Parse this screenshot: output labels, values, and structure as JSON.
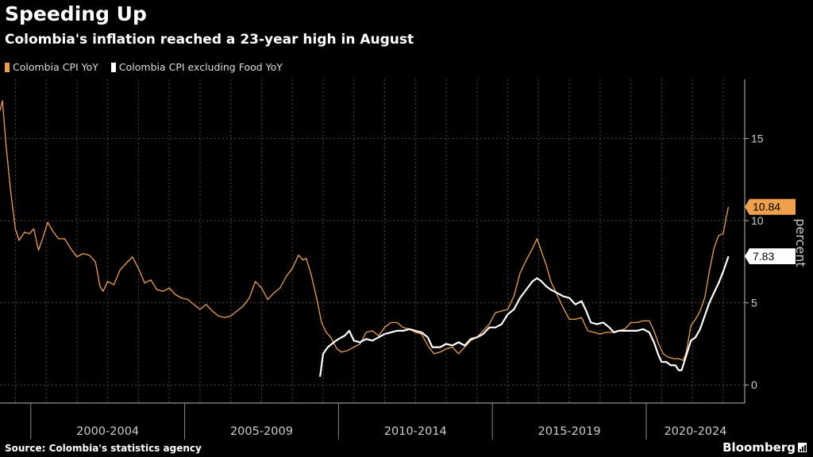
{
  "header": {
    "title": "Speeding Up",
    "subtitle": "Colombia's inflation reached a 23-year high in August"
  },
  "legend": [
    {
      "label": "Colombia CPI YoY",
      "color": "#f0a04b"
    },
    {
      "label": "Colombia CPI excluding Food YoY",
      "color": "#ffffff"
    }
  ],
  "footer": {
    "source": "Source: Colombia's statistics agency",
    "brand": "Bloomberg"
  },
  "chart_data": {
    "type": "line",
    "title": "Speeding Up",
    "subtitle": "Colombia's inflation reached a 23-year high in August",
    "xlabel": "",
    "ylabel": "percent",
    "x_period_labels": [
      "2000-2004",
      "2005-2009",
      "2010-2014",
      "2015-2019",
      "2020-2024"
    ],
    "xlim": [
      1999.0,
      2023.2
    ],
    "ylim": [
      -1.1,
      18.6
    ],
    "yticks": [
      0,
      5,
      10,
      15
    ],
    "grid": true,
    "last_value_labels": [
      "10.84",
      "7.83"
    ],
    "series": [
      {
        "name": "Colombia CPI YoY",
        "color": "#f0a04b",
        "points": [
          [
            1999.0,
            16.7
          ],
          [
            1999.08,
            17.3
          ],
          [
            1999.2,
            14.5
          ],
          [
            1999.35,
            11.7
          ],
          [
            1999.5,
            9.5
          ],
          [
            1999.62,
            8.8
          ],
          [
            1999.8,
            9.3
          ],
          [
            1999.95,
            9.2
          ],
          [
            2000.1,
            9.5
          ],
          [
            2000.25,
            8.2
          ],
          [
            2000.4,
            9.0
          ],
          [
            2000.55,
            9.9
          ],
          [
            2000.7,
            9.4
          ],
          [
            2000.9,
            8.9
          ],
          [
            2001.1,
            8.9
          ],
          [
            2001.3,
            8.3
          ],
          [
            2001.5,
            7.8
          ],
          [
            2001.7,
            8.0
          ],
          [
            2001.9,
            7.9
          ],
          [
            2002.1,
            7.5
          ],
          [
            2002.25,
            6.0
          ],
          [
            2002.35,
            5.7
          ],
          [
            2002.5,
            6.3
          ],
          [
            2002.7,
            6.1
          ],
          [
            2002.9,
            7.0
          ],
          [
            2003.1,
            7.4
          ],
          [
            2003.3,
            7.8
          ],
          [
            2003.5,
            7.1
          ],
          [
            2003.7,
            6.2
          ],
          [
            2003.9,
            6.4
          ],
          [
            2004.1,
            5.8
          ],
          [
            2004.3,
            5.7
          ],
          [
            2004.5,
            5.9
          ],
          [
            2004.7,
            5.5
          ],
          [
            2004.9,
            5.3
          ],
          [
            2005.1,
            5.2
          ],
          [
            2005.3,
            4.9
          ],
          [
            2005.5,
            4.6
          ],
          [
            2005.7,
            4.9
          ],
          [
            2005.9,
            4.5
          ],
          [
            2006.1,
            4.2
          ],
          [
            2006.3,
            4.1
          ],
          [
            2006.5,
            4.2
          ],
          [
            2006.7,
            4.5
          ],
          [
            2006.9,
            4.8
          ],
          [
            2007.1,
            5.3
          ],
          [
            2007.3,
            6.3
          ],
          [
            2007.5,
            5.9
          ],
          [
            2007.7,
            5.2
          ],
          [
            2007.9,
            5.6
          ],
          [
            2008.1,
            5.9
          ],
          [
            2008.3,
            6.6
          ],
          [
            2008.5,
            7.1
          ],
          [
            2008.7,
            7.9
          ],
          [
            2008.85,
            7.6
          ],
          [
            2008.95,
            7.7
          ],
          [
            2009.1,
            6.8
          ],
          [
            2009.3,
            5.2
          ],
          [
            2009.45,
            3.8
          ],
          [
            2009.6,
            3.2
          ],
          [
            2009.75,
            2.9
          ],
          [
            2009.95,
            2.2
          ],
          [
            2010.1,
            2.0
          ],
          [
            2010.3,
            2.1
          ],
          [
            2010.5,
            2.3
          ],
          [
            2010.7,
            2.5
          ],
          [
            2010.9,
            3.2
          ],
          [
            2011.1,
            3.3
          ],
          [
            2011.3,
            3.0
          ],
          [
            2011.5,
            3.5
          ],
          [
            2011.7,
            3.8
          ],
          [
            2011.9,
            3.8
          ],
          [
            2012.1,
            3.5
          ],
          [
            2012.3,
            3.4
          ],
          [
            2012.5,
            3.2
          ],
          [
            2012.7,
            3.1
          ],
          [
            2012.9,
            2.4
          ],
          [
            2013.1,
            1.9
          ],
          [
            2013.3,
            2.0
          ],
          [
            2013.5,
            2.2
          ],
          [
            2013.7,
            2.3
          ],
          [
            2013.9,
            1.9
          ],
          [
            2014.1,
            2.3
          ],
          [
            2014.3,
            2.7
          ],
          [
            2014.5,
            2.9
          ],
          [
            2014.7,
            3.3
          ],
          [
            2014.9,
            3.7
          ],
          [
            2015.1,
            4.4
          ],
          [
            2015.3,
            4.5
          ],
          [
            2015.5,
            4.6
          ],
          [
            2015.7,
            5.4
          ],
          [
            2015.9,
            6.8
          ],
          [
            2016.1,
            7.6
          ],
          [
            2016.3,
            8.3
          ],
          [
            2016.45,
            8.9
          ],
          [
            2016.6,
            8.1
          ],
          [
            2016.75,
            7.3
          ],
          [
            2016.9,
            6.3
          ],
          [
            2017.1,
            5.5
          ],
          [
            2017.3,
            4.7
          ],
          [
            2017.5,
            4.0
          ],
          [
            2017.7,
            4.0
          ],
          [
            2017.9,
            4.1
          ],
          [
            2018.1,
            3.3
          ],
          [
            2018.3,
            3.2
          ],
          [
            2018.5,
            3.1
          ],
          [
            2018.7,
            3.2
          ],
          [
            2018.9,
            3.2
          ],
          [
            2019.1,
            3.3
          ],
          [
            2019.3,
            3.4
          ],
          [
            2019.5,
            3.8
          ],
          [
            2019.7,
            3.8
          ],
          [
            2019.9,
            3.9
          ],
          [
            2020.1,
            3.9
          ],
          [
            2020.25,
            3.3
          ],
          [
            2020.4,
            2.5
          ],
          [
            2020.55,
            1.9
          ],
          [
            2020.7,
            1.7
          ],
          [
            2020.9,
            1.6
          ],
          [
            2021.05,
            1.6
          ],
          [
            2021.2,
            1.5
          ],
          [
            2021.3,
            2.0
          ],
          [
            2021.45,
            3.6
          ],
          [
            2021.6,
            4.0
          ],
          [
            2021.75,
            4.5
          ],
          [
            2021.9,
            5.3
          ],
          [
            2022.05,
            6.9
          ],
          [
            2022.2,
            8.3
          ],
          [
            2022.35,
            9.1
          ],
          [
            2022.5,
            9.2
          ],
          [
            2022.6,
            10.2
          ],
          [
            2022.67,
            10.84
          ]
        ]
      },
      {
        "name": "Colombia CPI excluding Food YoY",
        "color": "#ffffff",
        "points": [
          [
            2009.4,
            0.5
          ],
          [
            2009.5,
            1.9
          ],
          [
            2009.65,
            2.3
          ],
          [
            2009.85,
            2.6
          ],
          [
            2010.0,
            2.8
          ],
          [
            2010.2,
            3.0
          ],
          [
            2010.35,
            3.3
          ],
          [
            2010.5,
            2.7
          ],
          [
            2010.7,
            2.6
          ],
          [
            2010.9,
            2.8
          ],
          [
            2011.1,
            2.7
          ],
          [
            2011.3,
            2.9
          ],
          [
            2011.5,
            3.1
          ],
          [
            2011.7,
            3.2
          ],
          [
            2011.9,
            3.3
          ],
          [
            2012.1,
            3.3
          ],
          [
            2012.3,
            3.4
          ],
          [
            2012.5,
            3.3
          ],
          [
            2012.7,
            3.2
          ],
          [
            2012.9,
            2.9
          ],
          [
            2013.05,
            2.3
          ],
          [
            2013.3,
            2.3
          ],
          [
            2013.5,
            2.5
          ],
          [
            2013.7,
            2.4
          ],
          [
            2013.9,
            2.6
          ],
          [
            2014.1,
            2.4
          ],
          [
            2014.3,
            2.8
          ],
          [
            2014.5,
            2.9
          ],
          [
            2014.7,
            3.1
          ],
          [
            2014.9,
            3.5
          ],
          [
            2015.1,
            3.5
          ],
          [
            2015.3,
            3.7
          ],
          [
            2015.5,
            4.3
          ],
          [
            2015.7,
            4.6
          ],
          [
            2015.9,
            5.3
          ],
          [
            2016.1,
            5.8
          ],
          [
            2016.3,
            6.3
          ],
          [
            2016.45,
            6.5
          ],
          [
            2016.6,
            6.3
          ],
          [
            2016.75,
            6.0
          ],
          [
            2016.9,
            5.8
          ],
          [
            2017.1,
            5.6
          ],
          [
            2017.3,
            5.4
          ],
          [
            2017.5,
            5.3
          ],
          [
            2017.7,
            4.9
          ],
          [
            2017.9,
            5.1
          ],
          [
            2018.05,
            4.5
          ],
          [
            2018.2,
            3.8
          ],
          [
            2018.4,
            3.7
          ],
          [
            2018.6,
            3.8
          ],
          [
            2018.8,
            3.5
          ],
          [
            2018.95,
            3.2
          ],
          [
            2019.1,
            3.3
          ],
          [
            2019.3,
            3.3
          ],
          [
            2019.5,
            3.3
          ],
          [
            2019.7,
            3.3
          ],
          [
            2019.9,
            3.4
          ],
          [
            2020.1,
            3.2
          ],
          [
            2020.25,
            2.6
          ],
          [
            2020.4,
            1.8
          ],
          [
            2020.5,
            1.4
          ],
          [
            2020.65,
            1.4
          ],
          [
            2020.8,
            1.2
          ],
          [
            2020.95,
            1.2
          ],
          [
            2021.05,
            0.9
          ],
          [
            2021.15,
            0.9
          ],
          [
            2021.3,
            1.8
          ],
          [
            2021.45,
            2.7
          ],
          [
            2021.6,
            2.9
          ],
          [
            2021.75,
            3.4
          ],
          [
            2021.9,
            4.2
          ],
          [
            2022.05,
            5.0
          ],
          [
            2022.2,
            5.6
          ],
          [
            2022.35,
            6.2
          ],
          [
            2022.5,
            6.9
          ],
          [
            2022.67,
            7.83
          ]
        ]
      }
    ]
  }
}
